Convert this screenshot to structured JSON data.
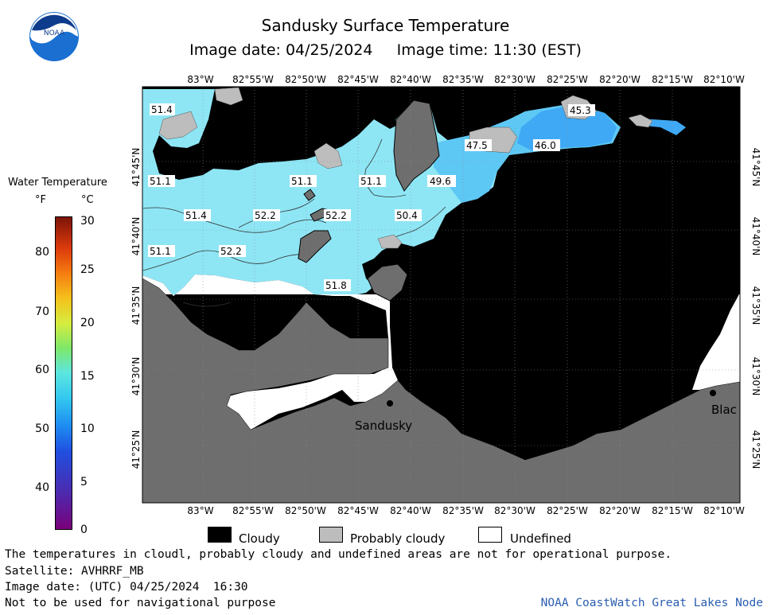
{
  "title": "Sandusky Surface Temperature",
  "image_date_label": "Image date: 04/25/2024",
  "image_time_label": "Image time: 11:30 (EST)",
  "logo": {
    "text": "NOAA"
  },
  "longitude_labels": [
    "83°W",
    "82°55'W",
    "82°50'W",
    "82°45'W",
    "82°40'W",
    "82°35'W",
    "82°30'W",
    "82°25'W",
    "82°20'W",
    "82°15'W",
    "82°10'W"
  ],
  "latitude_labels": [
    "41°45'N",
    "41°40'N",
    "41°35'N",
    "41°30'N",
    "41°25'N"
  ],
  "temperature_labels": [
    {
      "text": "51.4"
    },
    {
      "text": "45.3"
    },
    {
      "text": "47.5"
    },
    {
      "text": "46.0"
    },
    {
      "text": "51.1"
    },
    {
      "text": "51.1"
    },
    {
      "text": "51.1"
    },
    {
      "text": "49.6"
    },
    {
      "text": "51.4"
    },
    {
      "text": "52.2"
    },
    {
      "text": "52.2"
    },
    {
      "text": "50.4"
    },
    {
      "text": "51.1"
    },
    {
      "text": "52.2"
    },
    {
      "text": "51.8"
    }
  ],
  "places": {
    "sandusky": "Sandusky",
    "blac": "Blac"
  },
  "legend": {
    "title": "Water Temperature",
    "unit_f": "°F",
    "unit_c": "°C",
    "f_ticks": [
      "80",
      "70",
      "60",
      "50",
      "40"
    ],
    "c_ticks": [
      "30",
      "25",
      "20",
      "15",
      "10",
      "5",
      "0"
    ]
  },
  "key": {
    "cloudy": "Cloudy",
    "probably_cloudy": "Probably cloudy",
    "undefined": "Undefined"
  },
  "colors": {
    "cloudy": "#000000",
    "probably_cloudy": "#bdbdbd",
    "undefined": "#ffffff",
    "land": "#6e6e6e",
    "water_warm": "#8ee6f5",
    "water_cool": "#3fa9f5"
  },
  "footer": {
    "disclaimer": "The temperatures in cloudl, probably cloudy and undefined areas are not for operational purpose.",
    "satellite": "Satellite: AVHRRF_MB",
    "utc_date": "Image date: (UTC) 04/25/2024  16:30",
    "nav_warning": "Not to be used for navigational purpose",
    "node": "NOAA CoastWatch Great Lakes Node"
  }
}
